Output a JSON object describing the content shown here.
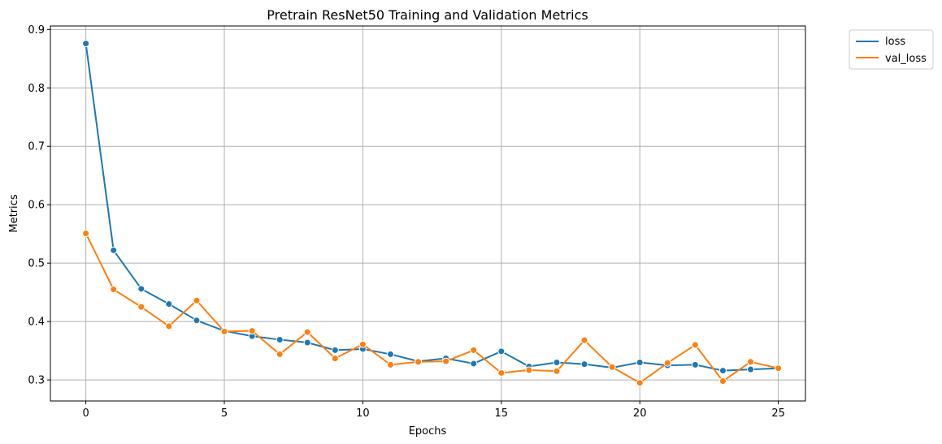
{
  "chart_data": {
    "type": "line",
    "title": "Pretrain ResNet50 Training and Validation Metrics",
    "xlabel": "Epochs",
    "ylabel": "Metrics",
    "xlim": [
      -1.28,
      25.98
    ],
    "ylim": [
      0.264,
      0.906
    ],
    "xticks": [
      0,
      5,
      10,
      15,
      20,
      25
    ],
    "yticks": [
      0.3,
      0.4,
      0.5,
      0.6,
      0.7,
      0.8,
      0.9
    ],
    "grid": true,
    "legend_position": "outside-top-right",
    "x": [
      0,
      1,
      2,
      3,
      4,
      5,
      6,
      7,
      8,
      9,
      10,
      11,
      12,
      13,
      14,
      15,
      16,
      17,
      18,
      19,
      20,
      21,
      22,
      23,
      24,
      25
    ],
    "series": [
      {
        "name": "loss",
        "color": "#1f77b4",
        "marker": "circle",
        "values": [
          0.876,
          0.522,
          0.456,
          0.43,
          0.402,
          0.384,
          0.375,
          0.369,
          0.364,
          0.351,
          0.353,
          0.344,
          0.332,
          0.337,
          0.328,
          0.349,
          0.323,
          0.33,
          0.327,
          0.321,
          0.33,
          0.325,
          0.326,
          0.316,
          0.318,
          0.32
        ]
      },
      {
        "name": "val_loss",
        "color": "#ff7f0e",
        "marker": "circle",
        "values": [
          0.551,
          0.455,
          0.425,
          0.392,
          0.436,
          0.383,
          0.384,
          0.344,
          0.382,
          0.337,
          0.361,
          0.326,
          0.331,
          0.332,
          0.351,
          0.312,
          0.317,
          0.315,
          0.368,
          0.322,
          0.295,
          0.329,
          0.36,
          0.298,
          0.331,
          0.32
        ]
      }
    ]
  }
}
